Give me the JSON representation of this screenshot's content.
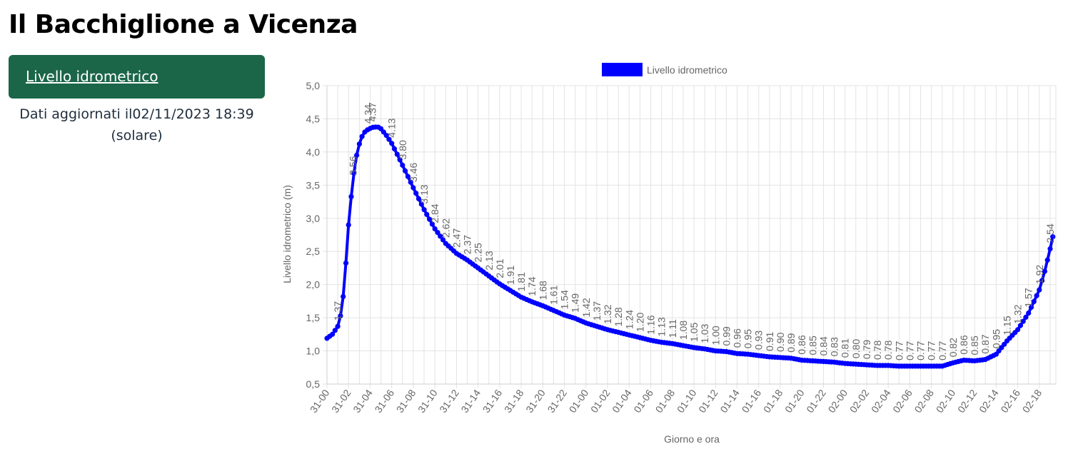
{
  "page": {
    "title": "Il Bacchiglione a Vicenza",
    "nav_button_label": "Livello idrometrico",
    "update_line1": "Dati aggiornati il02/11/2023 18:39",
    "update_line2": "(solare)"
  },
  "chart_data": {
    "type": "line",
    "title": "",
    "xlabel": "Giorno e ora",
    "ylabel": "Livello idrometrico (m)",
    "ylim": [
      0.5,
      5.0
    ],
    "yticks": [
      "0,5",
      "1,0",
      "1,5",
      "2,0",
      "2,5",
      "3,0",
      "3,5",
      "4,0",
      "4,5",
      "5,0"
    ],
    "grid": true,
    "legend_position": "top",
    "series": [
      {
        "name": "Livello idrometrico",
        "color": "#0000ff",
        "keypoints": [
          [
            0,
            1.19
          ],
          [
            0.5,
            1.25
          ],
          [
            1,
            1.37
          ],
          [
            1.3,
            1.56
          ],
          [
            1.6,
            1.95
          ],
          [
            1.8,
            2.45
          ],
          [
            2,
            2.9
          ],
          [
            2.2,
            3.25
          ],
          [
            2.4,
            3.56
          ],
          [
            2.6,
            3.8
          ],
          [
            2.8,
            4.0
          ],
          [
            3,
            4.12
          ],
          [
            3.2,
            4.22
          ],
          [
            3.5,
            4.3
          ],
          [
            3.8,
            4.34
          ],
          [
            4.2,
            4.37
          ],
          [
            4.7,
            4.38
          ],
          [
            5,
            4.35
          ],
          [
            5.5,
            4.25
          ],
          [
            6,
            4.13
          ],
          [
            7,
            3.8
          ],
          [
            8,
            3.46
          ],
          [
            9,
            3.13
          ],
          [
            10,
            2.84
          ],
          [
            11,
            2.62
          ],
          [
            12,
            2.47
          ],
          [
            13,
            2.37
          ],
          [
            14,
            2.25
          ],
          [
            15,
            2.13
          ],
          [
            16,
            2.01
          ],
          [
            17,
            1.91
          ],
          [
            18,
            1.81
          ],
          [
            19,
            1.74
          ],
          [
            20,
            1.68
          ],
          [
            21,
            1.61
          ],
          [
            22,
            1.54
          ],
          [
            23,
            1.49
          ],
          [
            24,
            1.42
          ],
          [
            25,
            1.37
          ],
          [
            26,
            1.32
          ],
          [
            27,
            1.28
          ],
          [
            28,
            1.24
          ],
          [
            29,
            1.2
          ],
          [
            30,
            1.16
          ],
          [
            31,
            1.13
          ],
          [
            32,
            1.11
          ],
          [
            33,
            1.08
          ],
          [
            34,
            1.05
          ],
          [
            35,
            1.03
          ],
          [
            36,
            1.0
          ],
          [
            37,
            0.99
          ],
          [
            38,
            0.96
          ],
          [
            39,
            0.95
          ],
          [
            40,
            0.93
          ],
          [
            41,
            0.91
          ],
          [
            42,
            0.9
          ],
          [
            43,
            0.89
          ],
          [
            44,
            0.86
          ],
          [
            45,
            0.85
          ],
          [
            46,
            0.84
          ],
          [
            47,
            0.83
          ],
          [
            48,
            0.81
          ],
          [
            49,
            0.8
          ],
          [
            50,
            0.79
          ],
          [
            51,
            0.78
          ],
          [
            52,
            0.78
          ],
          [
            53,
            0.77
          ],
          [
            54,
            0.77
          ],
          [
            55,
            0.77
          ],
          [
            56,
            0.77
          ],
          [
            57,
            0.77
          ],
          [
            58,
            0.82
          ],
          [
            59,
            0.86
          ],
          [
            60,
            0.85
          ],
          [
            61,
            0.87
          ],
          [
            62,
            0.95
          ],
          [
            63,
            1.15
          ],
          [
            64,
            1.32
          ],
          [
            65,
            1.57
          ],
          [
            66,
            1.92
          ],
          [
            66.5,
            2.2
          ],
          [
            67,
            2.54
          ],
          [
            67.4,
            2.83
          ]
        ],
        "samples_per_hour": 4
      }
    ],
    "x_tick_labels": [
      "31-00",
      "31-02",
      "31-04",
      "31-06",
      "31-08",
      "31-10",
      "31-12",
      "31-14",
      "31-16",
      "31-18",
      "31-20",
      "31-22",
      "01-00",
      "01-02",
      "01-04",
      "01-06",
      "01-08",
      "01-10",
      "01-12",
      "01-14",
      "01-16",
      "01-18",
      "01-20",
      "01-22",
      "02-00",
      "02-02",
      "02-04",
      "02-06",
      "02-08",
      "02-10",
      "02-12",
      "02-14",
      "02-16",
      "02-18"
    ],
    "x_tick_step_hours": 2,
    "x_max_hours": 67.4,
    "data_labels": [
      {
        "x": 1,
        "label": "1.37"
      },
      {
        "x": 2.4,
        "label": "3.56"
      },
      {
        "x": 3.8,
        "label": "4.34"
      },
      {
        "x": 4.2,
        "label": "4.37"
      },
      {
        "x": 6,
        "label": "4.13"
      },
      {
        "x": 7,
        "label": "3.80"
      },
      {
        "x": 8,
        "label": "3.46"
      },
      {
        "x": 9,
        "label": "3.13"
      },
      {
        "x": 10,
        "label": "2.84"
      },
      {
        "x": 11,
        "label": "2.62"
      },
      {
        "x": 12,
        "label": "2.47"
      },
      {
        "x": 13,
        "label": "2.37"
      },
      {
        "x": 14,
        "label": "2.25"
      },
      {
        "x": 15,
        "label": "2.13"
      },
      {
        "x": 16,
        "label": "2.01"
      },
      {
        "x": 17,
        "label": "1.91"
      },
      {
        "x": 18,
        "label": "1.81"
      },
      {
        "x": 19,
        "label": "1.74"
      },
      {
        "x": 20,
        "label": "1.68"
      },
      {
        "x": 21,
        "label": "1.61"
      },
      {
        "x": 22,
        "label": "1.54"
      },
      {
        "x": 23,
        "label": "1.49"
      },
      {
        "x": 24,
        "label": "1.42"
      },
      {
        "x": 25,
        "label": "1.37"
      },
      {
        "x": 26,
        "label": "1.32"
      },
      {
        "x": 27,
        "label": "1.28"
      },
      {
        "x": 28,
        "label": "1.24"
      },
      {
        "x": 29,
        "label": "1.20"
      },
      {
        "x": 30,
        "label": "1.16"
      },
      {
        "x": 31,
        "label": "1.13"
      },
      {
        "x": 32,
        "label": "1.11"
      },
      {
        "x": 33,
        "label": "1.08"
      },
      {
        "x": 34,
        "label": "1.05"
      },
      {
        "x": 35,
        "label": "1.03"
      },
      {
        "x": 36,
        "label": "1.00"
      },
      {
        "x": 37,
        "label": "0.99"
      },
      {
        "x": 38,
        "label": "0.96"
      },
      {
        "x": 39,
        "label": "0.95"
      },
      {
        "x": 40,
        "label": "0.93"
      },
      {
        "x": 41,
        "label": "0.91"
      },
      {
        "x": 42,
        "label": "0.90"
      },
      {
        "x": 43,
        "label": "0.89"
      },
      {
        "x": 44,
        "label": "0.86"
      },
      {
        "x": 45,
        "label": "0.85"
      },
      {
        "x": 46,
        "label": "0.84"
      },
      {
        "x": 47,
        "label": "0.83"
      },
      {
        "x": 48,
        "label": "0.81"
      },
      {
        "x": 49,
        "label": "0.80"
      },
      {
        "x": 50,
        "label": "0.79"
      },
      {
        "x": 51,
        "label": "0.78"
      },
      {
        "x": 52,
        "label": "0.78"
      },
      {
        "x": 53,
        "label": "0.77"
      },
      {
        "x": 54,
        "label": "0.77"
      },
      {
        "x": 55,
        "label": "0.77"
      },
      {
        "x": 56,
        "label": "0.77"
      },
      {
        "x": 57,
        "label": "0.77"
      },
      {
        "x": 58,
        "label": "0.82"
      },
      {
        "x": 59,
        "label": "0.86"
      },
      {
        "x": 60,
        "label": "0.85"
      },
      {
        "x": 61,
        "label": "0.87"
      },
      {
        "x": 62,
        "label": "0.95"
      },
      {
        "x": 63,
        "label": "1.15"
      },
      {
        "x": 64,
        "label": "1.32"
      },
      {
        "x": 65,
        "label": "1.57"
      },
      {
        "x": 66,
        "label": "1.92"
      },
      {
        "x": 67,
        "label": "2.54"
      }
    ]
  }
}
